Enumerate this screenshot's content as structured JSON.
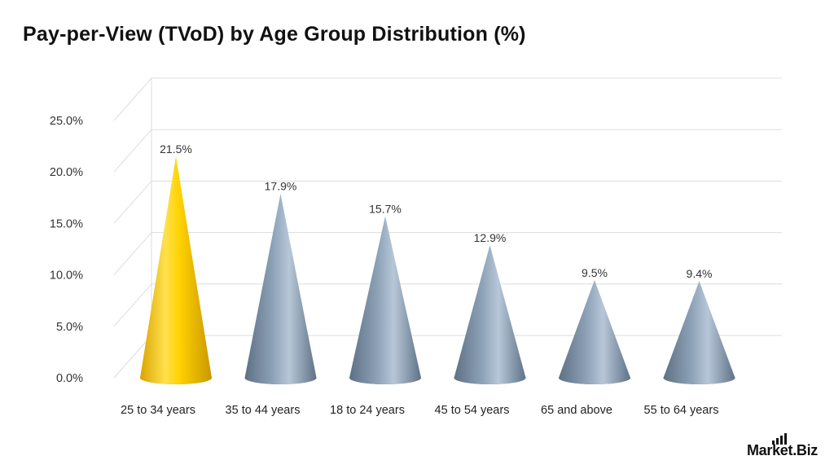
{
  "title": "Pay-per-View (TVoD) by Age Group Distribution (%)",
  "brand": "Market.Biz",
  "chart_data": {
    "type": "bar",
    "bar_shape": "cone",
    "title": "Pay-per-View (TVoD) by Age Group Distribution (%)",
    "categories": [
      "25 to 34 years",
      "35 to 44 years",
      "18 to 24 years",
      "45 to 54 years",
      "65 and above",
      "55 to 64 years"
    ],
    "values": [
      21.5,
      17.9,
      15.7,
      12.9,
      9.5,
      9.4
    ],
    "data_labels": [
      "21.5%",
      "17.9%",
      "15.7%",
      "12.9%",
      "9.5%",
      "9.4%"
    ],
    "y_ticks": [
      0,
      5,
      10,
      15,
      20,
      25
    ],
    "y_tick_labels": [
      "0.0%",
      "5.0%",
      "10.0%",
      "15.0%",
      "20.0%",
      "25.0%"
    ],
    "ylim": [
      0,
      25
    ],
    "xlabel": "",
    "ylabel": "",
    "grid": true,
    "legend": "none",
    "colors": {
      "highlight": "#F5C400",
      "default": "#7F93A8",
      "grid": "#DDDDDD"
    }
  }
}
